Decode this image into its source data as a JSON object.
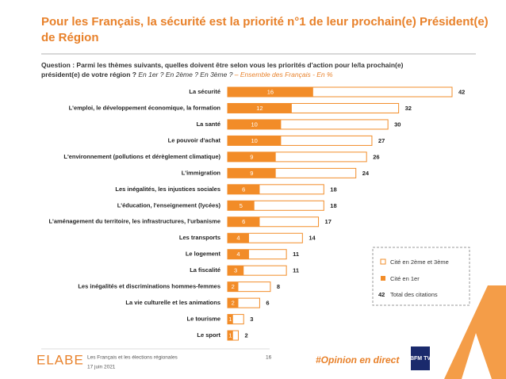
{
  "chart_data": {
    "type": "bar",
    "title": "Pour les Français, la sécurité est la priorité n°1 de leur prochain(e) Président(e) de Région",
    "question_label": "Question :",
    "question": "Parmi les thèmes suivants, quelles doivent être selon vous les priorités d'action pour le/la prochain(e) président(e) de votre région ?",
    "question_options": "En 1er ? En 2ème ? En 3ème ?",
    "question_base": "– Ensemble des Français - En %",
    "categories": [
      "La sécurité",
      "L'emploi, le développement économique, la formation",
      "La santé",
      "Le pouvoir d'achat",
      "L'environnement (pollutions et dérèglement climatique)",
      "L'immigration",
      "Les inégalités, les injustices sociales",
      "L'éducation, l'enseignement (lycées)",
      "L'aménagement du territoire, les infrastructures, l'urbanisme",
      "Les transports",
      "Le logement",
      "La fiscalité",
      "Les inégalités et discriminations hommes-femmes",
      "La vie culturelle et les animations",
      "Le tourisme",
      "Le sport"
    ],
    "series": [
      {
        "name": "Cité en 1er",
        "color": "#f28c28",
        "values": [
          16,
          12,
          10,
          10,
          9,
          9,
          6,
          5,
          6,
          4,
          4,
          3,
          2,
          2,
          1,
          1
        ]
      },
      {
        "name": "Total des citations",
        "color": "#f28c28",
        "values": [
          42,
          32,
          30,
          27,
          26,
          24,
          18,
          18,
          17,
          14,
          11,
          11,
          8,
          6,
          3,
          2
        ]
      }
    ],
    "second_legend": "Cité en 2ème et 3ème",
    "xlim": [
      0,
      42
    ],
    "footer": {
      "logo": "ELABE",
      "study": "Les Français et les élections régionales",
      "date": "17 juin 2021",
      "page": "16",
      "hashtag": "#Opinion en direct",
      "partner": "BFM TV"
    }
  }
}
